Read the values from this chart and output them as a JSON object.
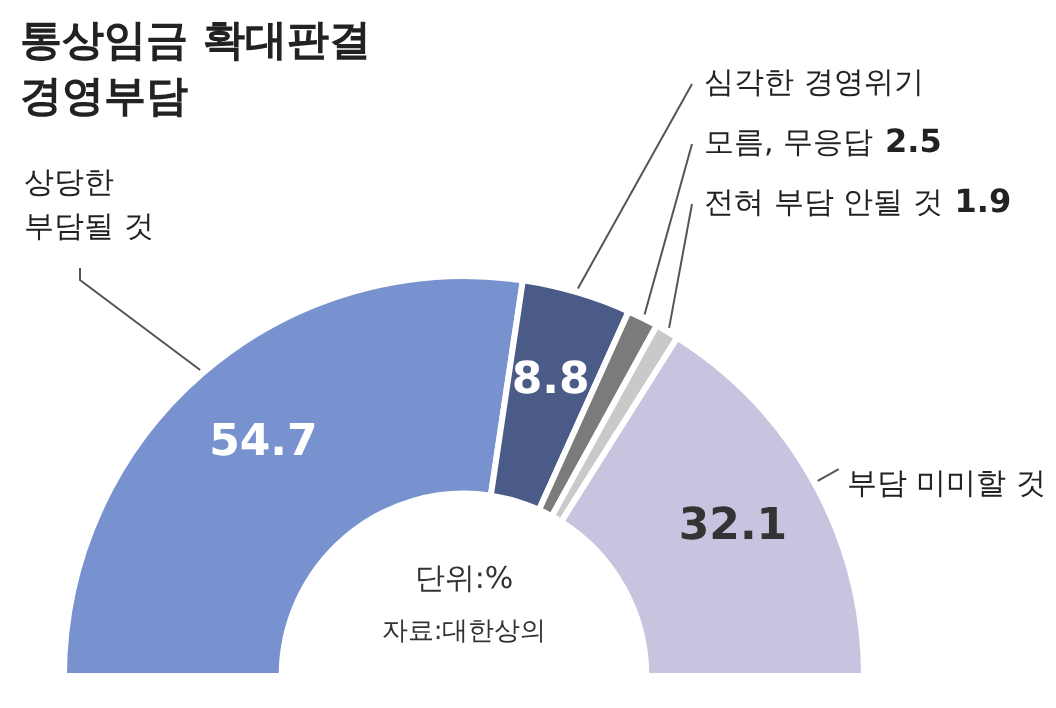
{
  "chart_data": {
    "type": "donut",
    "title": "통상임금 확대판결 경영부담",
    "categories": [
      "상당한 부담될 것",
      "심각한 경영위기",
      "모름, 무응답",
      "전혀 부담 안될 것",
      "부담 미미할 것"
    ],
    "values": [
      54.7,
      8.8,
      2.5,
      1.9,
      32.1
    ],
    "colors": [
      "#7891cf",
      "#4b5b87",
      "#7b7b7b",
      "#c9c9c9",
      "#c6c4de"
    ],
    "data_labels": true,
    "legend": false,
    "annotations": [
      "단위:%",
      "자료:대한상의"
    ]
  }
}
